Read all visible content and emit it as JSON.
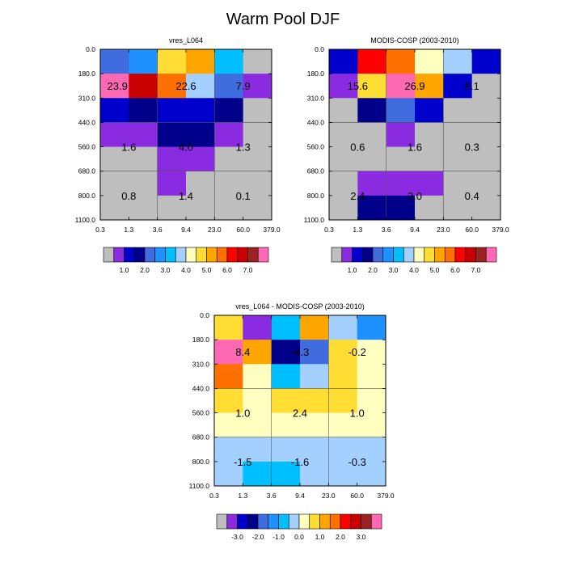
{
  "title": "Warm Pool DJF",
  "chart_data": [
    {
      "type": "heatmap",
      "title": "vres_L064",
      "x_edges": [
        "0.3",
        "1.3",
        "3.6",
        "9.4",
        "23.0",
        "60.0",
        "379.0"
      ],
      "y_edges": [
        "0.0",
        "180.0",
        "310.0",
        "440.0",
        "560.0",
        "680.0",
        "800.0",
        "1100.0"
      ],
      "cell_colors": [
        [
          "#3f6de0",
          "#1e90ff",
          "#ffdd33",
          "#ffa500",
          "#00bfff",
          "#bebebe"
        ],
        [
          "#ff69b4",
          "#c80000",
          "#ff7000",
          "#a3d0ff",
          "#3f6de0",
          "#8a2be2"
        ],
        [
          "#0000cd",
          "#00008b",
          "#0000cd",
          "#0000cd",
          "#00008b",
          "#bebebe"
        ],
        [
          "#8a2be2",
          "#8a2be2",
          "#00008b",
          "#00008b",
          "#8a2be2",
          "#bebebe"
        ],
        [
          "#bebebe",
          "#bebebe",
          "#8a2be2",
          "#8a2be2",
          "#bebebe",
          "#bebebe"
        ],
        [
          "#bebebe",
          "#bebebe",
          "#8a2be2",
          "#bebebe",
          "#bebebe",
          "#bebebe"
        ],
        [
          "#bebebe",
          "#bebebe",
          "#bebebe",
          "#bebebe",
          "#bebebe",
          "#bebebe"
        ]
      ],
      "labels": [
        {
          "text": "23.9",
          "col": 0.6,
          "row": 1.5
        },
        {
          "text": "22.6",
          "col": 3.0,
          "row": 1.5
        },
        {
          "text": "7.9",
          "col": 5.0,
          "row": 1.5
        },
        {
          "text": "1.6",
          "col": 1.0,
          "row": 4.0
        },
        {
          "text": "4.0",
          "col": 3.0,
          "row": 4.0
        },
        {
          "text": "1.3",
          "col": 5.0,
          "row": 4.0
        },
        {
          "text": "0.8",
          "col": 1.0,
          "row": 6.0
        },
        {
          "text": "1.4",
          "col": 3.0,
          "row": 6.0
        },
        {
          "text": "0.1",
          "col": 5.0,
          "row": 6.0
        }
      ],
      "colorbar": {
        "colors": [
          "#bebebe",
          "#8a2be2",
          "#0000cd",
          "#00008b",
          "#3f6de0",
          "#1e90ff",
          "#00bfff",
          "#a3d0ff",
          "#ffffc0",
          "#ffdd33",
          "#ffa500",
          "#ff7000",
          "#ff0000",
          "#c80000",
          "#9b2222",
          "#ff69b4"
        ],
        "labels": [
          "1.0",
          "2.0",
          "3.0",
          "4.0",
          "5.0",
          "6.0",
          "7.0"
        ]
      }
    },
    {
      "type": "heatmap",
      "title": "MODIS-COSP (2003-2010)",
      "x_edges": [
        "0.3",
        "1.3",
        "3.6",
        "9.4",
        "23.0",
        "60.0",
        "379.0"
      ],
      "y_edges": [
        "0.0",
        "180.0",
        "310.0",
        "440.0",
        "560.0",
        "680.0",
        "800.0",
        "1100.0"
      ],
      "cell_colors": [
        [
          "#0000cd",
          "#ff0000",
          "#ff7000",
          "#ffffc0",
          "#a3d0ff",
          "#0000cd"
        ],
        [
          "#8a2be2",
          "#ffdd33",
          "#ff69b4",
          "#ffa500",
          "#0000cd",
          "#bebebe"
        ],
        [
          "#bebebe",
          "#00008b",
          "#3f6de0",
          "#0000cd",
          "#bebebe",
          "#bebebe"
        ],
        [
          "#bebebe",
          "#bebebe",
          "#8a2be2",
          "#bebebe",
          "#bebebe",
          "#bebebe"
        ],
        [
          "#bebebe",
          "#bebebe",
          "#bebebe",
          "#bebebe",
          "#bebebe",
          "#bebebe"
        ],
        [
          "#bebebe",
          "#8a2be2",
          "#8a2be2",
          "#8a2be2",
          "#bebebe",
          "#bebebe"
        ],
        [
          "#bebebe",
          "#00008b",
          "#00008b",
          "#bebebe",
          "#bebebe",
          "#bebebe"
        ]
      ],
      "labels": [
        {
          "text": "15.6",
          "col": 1.0,
          "row": 1.5
        },
        {
          "text": "26.9",
          "col": 3.0,
          "row": 1.5
        },
        {
          "text": "8.1",
          "col": 5.0,
          "row": 1.5
        },
        {
          "text": "0.6",
          "col": 1.0,
          "row": 4.0
        },
        {
          "text": "1.6",
          "col": 3.0,
          "row": 4.0
        },
        {
          "text": "0.3",
          "col": 5.0,
          "row": 4.0
        },
        {
          "text": "2.4",
          "col": 1.0,
          "row": 6.0
        },
        {
          "text": "3.0",
          "col": 3.0,
          "row": 6.0
        },
        {
          "text": "0.4",
          "col": 5.0,
          "row": 6.0
        }
      ],
      "colorbar": {
        "colors": [
          "#bebebe",
          "#8a2be2",
          "#0000cd",
          "#00008b",
          "#3f6de0",
          "#1e90ff",
          "#00bfff",
          "#a3d0ff",
          "#ffffc0",
          "#ffdd33",
          "#ffa500",
          "#ff7000",
          "#ff0000",
          "#c80000",
          "#9b2222",
          "#ff69b4"
        ],
        "labels": [
          "1.0",
          "2.0",
          "3.0",
          "4.0",
          "5.0",
          "6.0",
          "7.0"
        ]
      }
    },
    {
      "type": "heatmap",
      "title": "vres_L064 - MODIS-COSP (2003-2010)",
      "x_edges": [
        "0.3",
        "1.3",
        "3.6",
        "9.4",
        "23.0",
        "60.0",
        "379.0"
      ],
      "y_edges": [
        "0.0",
        "180.0",
        "310.0",
        "440.0",
        "560.0",
        "680.0",
        "800.0",
        "1100.0"
      ],
      "cell_colors": [
        [
          "#ffdd33",
          "#8a2be2",
          "#00bfff",
          "#ffa500",
          "#a3d0ff",
          "#1e90ff"
        ],
        [
          "#ff69b4",
          "#ffa500",
          "#00008b",
          "#3f6de0",
          "#ffdd33",
          "#ffffc0"
        ],
        [
          "#ff7000",
          "#ffffc0",
          "#00bfff",
          "#a3d0ff",
          "#ffdd33",
          "#ffffc0"
        ],
        [
          "#ffdd33",
          "#ffffc0",
          "#ffdd33",
          "#ffdd33",
          "#ffdd33",
          "#ffffc0"
        ],
        [
          "#ffffc0",
          "#ffffc0",
          "#ffffc0",
          "#ffffc0",
          "#ffffc0",
          "#ffffc0"
        ],
        [
          "#a3d0ff",
          "#a3d0ff",
          "#a3d0ff",
          "#a3d0ff",
          "#a3d0ff",
          "#a3d0ff"
        ],
        [
          "#a3d0ff",
          "#00bfff",
          "#00bfff",
          "#a3d0ff",
          "#a3d0ff",
          "#a3d0ff"
        ]
      ],
      "labels": [
        {
          "text": "8.4",
          "col": 1.0,
          "row": 1.5
        },
        {
          "text": "-4.3",
          "col": 3.0,
          "row": 1.5
        },
        {
          "text": "-0.2",
          "col": 5.0,
          "row": 1.5
        },
        {
          "text": "1.0",
          "col": 1.0,
          "row": 4.0
        },
        {
          "text": "2.4",
          "col": 3.0,
          "row": 4.0
        },
        {
          "text": "1.0",
          "col": 5.0,
          "row": 4.0
        },
        {
          "text": "-1.5",
          "col": 1.0,
          "row": 6.0
        },
        {
          "text": "-1.6",
          "col": 3.0,
          "row": 6.0
        },
        {
          "text": "-0.3",
          "col": 5.0,
          "row": 6.0
        }
      ],
      "colorbar": {
        "colors": [
          "#bebebe",
          "#8a2be2",
          "#0000cd",
          "#00008b",
          "#3f6de0",
          "#1e90ff",
          "#00bfff",
          "#a3d0ff",
          "#ffffc0",
          "#ffdd33",
          "#ffa500",
          "#ff7000",
          "#ff0000",
          "#c80000",
          "#9b2222",
          "#ff69b4"
        ],
        "labels": [
          "-3.0",
          "-2.0",
          "-1.0",
          "0.0",
          "1.0",
          "2.0",
          "3.0"
        ]
      }
    }
  ]
}
